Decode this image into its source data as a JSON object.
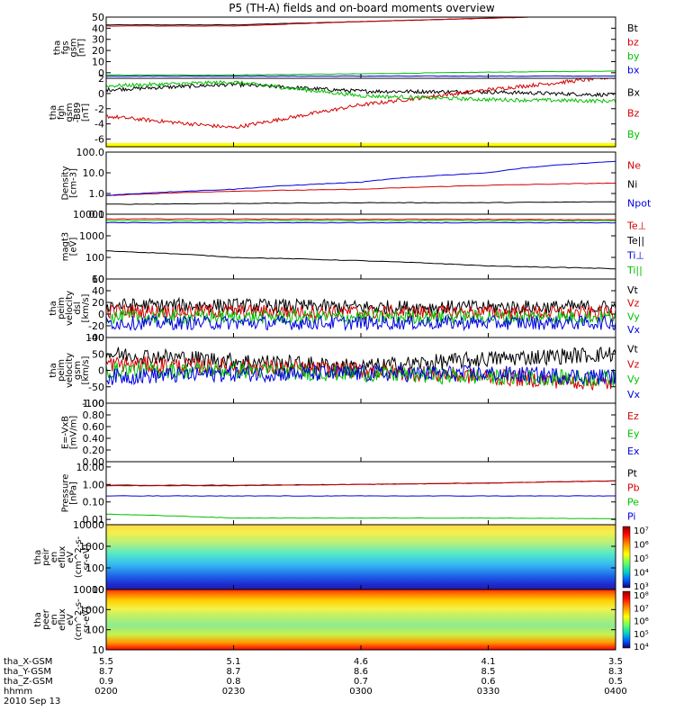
{
  "title": "P5 (TH-A) fields and on-board moments overview",
  "panels": [
    {
      "id": "fgs",
      "ylabel": [
        "tha",
        "fgs",
        "gsm",
        "[nT]"
      ],
      "scale": "linear",
      "ylim": [
        -5,
        50
      ],
      "ticks": [
        "50",
        "40",
        "30",
        "20",
        "10",
        "0"
      ],
      "legend": [
        {
          "name": "Bt",
          "color": "#000000"
        },
        {
          "name": "bz",
          "color": "#d40000"
        },
        {
          "name": "by",
          "color": "#00c000"
        },
        {
          "name": "bx",
          "color": "#0000e0"
        }
      ]
    },
    {
      "id": "fgh",
      "ylabel": [
        "tha",
        "fgh",
        "gsm",
        "-B89",
        "[nT]"
      ],
      "scale": "linear",
      "ylim": [
        -7,
        2
      ],
      "ticks": [
        "2",
        "0",
        "-2",
        "-4",
        "-6"
      ],
      "legend": [
        {
          "name": "Bx",
          "color": "#000000"
        },
        {
          "name": "Bz",
          "color": "#d40000"
        },
        {
          "name": "By",
          "color": "#00c000"
        }
      ]
    },
    {
      "id": "density",
      "ylabel": [
        "Density",
        "[cm-3]"
      ],
      "scale": "log",
      "ylim": [
        0.1,
        100
      ],
      "ticks": [
        "100.0",
        "10.0",
        "1.0",
        "0.1"
      ],
      "legend": [
        {
          "name": "Ne",
          "color": "#d40000"
        },
        {
          "name": "Ni",
          "color": "#000000"
        },
        {
          "name": "Npot",
          "color": "#0000e0"
        }
      ]
    },
    {
      "id": "temp",
      "ylabel": [
        "magt3",
        "[eV]"
      ],
      "scale": "log",
      "ylim": [
        10,
        10000
      ],
      "ticks": [
        "10000",
        "1000",
        "100",
        "10"
      ],
      "legend": [
        {
          "name": "Te⊥",
          "color": "#d40000"
        },
        {
          "name": "Te||",
          "color": "#000000"
        },
        {
          "name": "Ti⊥",
          "color": "#0000e0"
        },
        {
          "name": "Ti||",
          "color": "#00c000"
        }
      ]
    },
    {
      "id": "vel_peim1",
      "ylabel": [
        "tha",
        "peim",
        "velocity",
        "dsl",
        "[km/s]"
      ],
      "scale": "linear",
      "ylim": [
        -40,
        60
      ],
      "ticks": [
        "60",
        "40",
        "20",
        "0",
        "-20",
        "-40"
      ],
      "legend": [
        {
          "name": "Vt",
          "color": "#000000"
        },
        {
          "name": "Vz",
          "color": "#d40000"
        },
        {
          "name": "Vy",
          "color": "#00c000"
        },
        {
          "name": "Vx",
          "color": "#0000e0"
        }
      ]
    },
    {
      "id": "vel_peim2",
      "ylabel": [
        "tha",
        "peim",
        "velocity",
        "gsm",
        "[km/s]"
      ],
      "scale": "linear",
      "ylim": [
        -100,
        100
      ],
      "ticks": [
        "100",
        "50",
        "0",
        "-50",
        "-100"
      ],
      "legend": [
        {
          "name": "Vt",
          "color": "#000000"
        },
        {
          "name": "Vz",
          "color": "#d40000"
        },
        {
          "name": "Vy",
          "color": "#00c000"
        },
        {
          "name": "Vx",
          "color": "#0000e0"
        }
      ]
    },
    {
      "id": "efield",
      "ylabel": [
        "E=-VxB",
        "[mV/m]"
      ],
      "scale": "linear",
      "ylim": [
        0,
        1
      ],
      "ticks": [
        "1.00",
        "0.80",
        "0.60",
        "0.40",
        "0.20",
        "0.00"
      ],
      "legend": [
        {
          "name": "Ez",
          "color": "#d40000"
        },
        {
          "name": "Ey",
          "color": "#00c000"
        },
        {
          "name": "Ex",
          "color": "#0000e0"
        }
      ]
    },
    {
      "id": "pressure",
      "ylabel": [
        "Pressure",
        "[nPa]"
      ],
      "scale": "log",
      "ylim": [
        0.005,
        20
      ],
      "ticks": [
        "10.00",
        "1.00",
        "0.10",
        "0.01"
      ],
      "legend": [
        {
          "name": "Pt",
          "color": "#000000"
        },
        {
          "name": "Pb",
          "color": "#d40000"
        },
        {
          "name": "Pe",
          "color": "#00c000"
        },
        {
          "name": "Pi",
          "color": "#0000e0"
        }
      ]
    },
    {
      "id": "peir_spec",
      "ylabel": [
        "tha",
        "peir",
        "en",
        "eflux",
        "eV",
        "(cm^2-s-",
        "sr-eV)"
      ],
      "scale": "log",
      "ylim": [
        10,
        10000
      ],
      "ticks": [
        "10000",
        "1000",
        "100",
        "10"
      ],
      "colorbar": [
        "10⁷",
        "10⁶",
        "10⁵",
        "10⁴",
        "10³"
      ]
    },
    {
      "id": "peer_spec",
      "ylabel": [
        "tha",
        "peer",
        "en",
        "eflux",
        "eV",
        "(cm^2-s-",
        "sr-eV)"
      ],
      "scale": "log",
      "ylim": [
        10,
        10000
      ],
      "ticks": [
        "10000",
        "1000",
        "100",
        "10"
      ],
      "colorbar": [
        "10⁸",
        "10⁷",
        "10⁶",
        "10⁵",
        "10⁴"
      ]
    }
  ],
  "time_axis": {
    "rows": [
      {
        "label": "tha_X-GSM",
        "values": [
          "5.5",
          "5.1",
          "4.6",
          "4.1",
          "3.5"
        ]
      },
      {
        "label": "tha_Y-GSM",
        "values": [
          "8.7",
          "8.7",
          "8.6",
          "8.5",
          "8.3"
        ]
      },
      {
        "label": "tha_Z-GSM",
        "values": [
          "0.9",
          "0.8",
          "0.7",
          "0.6",
          "0.5"
        ]
      },
      {
        "label": "hhmm",
        "values": [
          "0200",
          "0230",
          "0300",
          "0330",
          "0400"
        ]
      }
    ],
    "date": "2010 Sep 13"
  },
  "chart_data": {
    "type": "line",
    "title": "P5 (TH-A) fields and on-board moments overview",
    "x": [
      "0200",
      "0230",
      "0300",
      "0330",
      "0400"
    ],
    "panels": [
      {
        "id": "fgs",
        "series": [
          {
            "name": "Bt",
            "values": [
              43,
              43,
              46,
              49,
              52
            ]
          },
          {
            "name": "bz",
            "values": [
              42,
              42,
              46,
              49,
              52
            ]
          },
          {
            "name": "by",
            "values": [
              -2,
              -2,
              -1,
              0.5,
              1.5
            ]
          },
          {
            "name": "bx",
            "values": [
              -3,
              -3,
              -3,
              -3,
              -3
            ]
          }
        ]
      },
      {
        "id": "fgh",
        "series": [
          {
            "name": "Bx",
            "values": [
              0.5,
              1.2,
              0.3,
              0.2,
              -0.2
            ]
          },
          {
            "name": "Bz",
            "values": [
              -3,
              -4.5,
              -1.5,
              0.5,
              2.2
            ]
          },
          {
            "name": "By",
            "values": [
              1,
              1.5,
              -0.3,
              -0.8,
              -1
            ]
          }
        ]
      },
      {
        "id": "density",
        "series": [
          {
            "name": "Ne",
            "values": [
              0.8,
              1.3,
              1.6,
              2.5,
              3.2
            ]
          },
          {
            "name": "Ni",
            "values": [
              0.3,
              0.33,
              0.36,
              0.36,
              0.4
            ]
          },
          {
            "name": "Npot",
            "values": [
              0.8,
              1.6,
              3.5,
              10,
              35
            ]
          }
        ]
      },
      {
        "id": "temp",
        "series": [
          {
            "name": "Te⊥",
            "values": [
              6000,
              6000,
              5800,
              5800,
              5500
            ]
          },
          {
            "name": "Te||",
            "values": [
              200,
              100,
              70,
              40,
              30
            ]
          },
          {
            "name": "Ti⊥",
            "values": [
              4000,
              4000,
              4000,
              4000,
              4000
            ]
          },
          {
            "name": "Ti||",
            "values": [
              5000,
              5000,
              5000,
              5000,
              5000
            ]
          }
        ]
      },
      {
        "id": "vel_peim1",
        "series": [
          {
            "name": "Vt",
            "values": [
              15,
              15,
              12,
              12,
              12
            ]
          },
          {
            "name": "Vz",
            "values": [
              5,
              5,
              3,
              3,
              2
            ]
          },
          {
            "name": "Vy",
            "values": [
              -5,
              -5,
              -5,
              -5,
              -5
            ]
          },
          {
            "name": "Vx",
            "values": [
              -15,
              -15,
              -15,
              -15,
              -15
            ]
          }
        ]
      },
      {
        "id": "vel_peim2",
        "series": [
          {
            "name": "Vt",
            "values": [
              50,
              30,
              10,
              35,
              50
            ]
          },
          {
            "name": "Vz",
            "values": [
              20,
              10,
              0,
              -20,
              -40
            ]
          },
          {
            "name": "Vy",
            "values": [
              0,
              0,
              -10,
              -20,
              -25
            ]
          },
          {
            "name": "Vx",
            "values": [
              -20,
              -10,
              -10,
              -10,
              -20
            ]
          }
        ]
      },
      {
        "id": "pressure",
        "series": [
          {
            "name": "Pt",
            "values": [
              0.9,
              0.9,
              1.0,
              1.2,
              1.6
            ]
          },
          {
            "name": "Pb",
            "values": [
              0.85,
              0.85,
              1.0,
              1.2,
              1.6
            ]
          },
          {
            "name": "Pe",
            "values": [
              0.02,
              0.012,
              0.012,
              0.012,
              0.011
            ]
          },
          {
            "name": "Pi",
            "values": [
              0.22,
              0.22,
              0.22,
              0.22,
              0.22
            ]
          }
        ]
      }
    ]
  }
}
